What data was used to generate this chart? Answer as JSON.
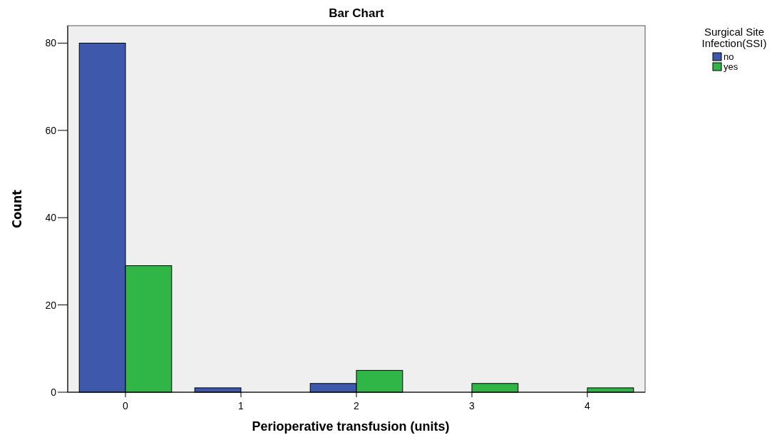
{
  "chart_data": {
    "type": "bar",
    "title": "Bar Chart",
    "xlabel": "Perioperative transfusion (units)",
    "ylabel": "Count",
    "legend_title": "Surgical Site Infection(SSI)",
    "categories": [
      "0",
      "1",
      "2",
      "3",
      "4"
    ],
    "series": [
      {
        "name": "no",
        "color": "#3e58ac",
        "values": [
          80,
          1,
          2,
          0,
          0
        ]
      },
      {
        "name": "yes",
        "color": "#2fb647",
        "values": [
          29,
          0,
          5,
          2,
          1
        ]
      }
    ],
    "ylim": [
      0,
      84
    ],
    "yticks": [
      0,
      20,
      40,
      60,
      80
    ],
    "grid": false,
    "legend": "top right"
  }
}
